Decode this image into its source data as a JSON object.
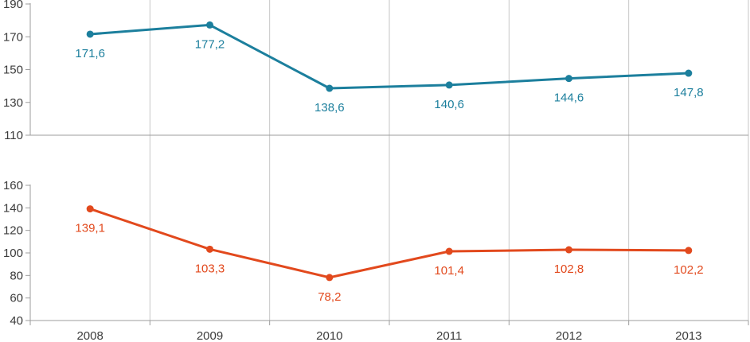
{
  "chart_data": [
    {
      "type": "line",
      "name": "upper-series",
      "title": "",
      "categories": [
        "2008",
        "2009",
        "2010",
        "2011",
        "2012",
        "2013"
      ],
      "values": [
        171.6,
        177.2,
        138.6,
        140.6,
        144.6,
        147.8
      ],
      "point_labels": [
        "171,6",
        "177,2",
        "138,6",
        "140,6",
        "144,6",
        "147,8"
      ],
      "color": "#1c7f9d",
      "xlabel": "",
      "ylabel": "",
      "ylim": [
        110,
        190
      ],
      "yticks": [
        190,
        170,
        150,
        130,
        110
      ],
      "ytick_labels": [
        "190",
        "170",
        "150",
        "130",
        "110"
      ],
      "grid": "vertical-on",
      "legend": "none"
    },
    {
      "type": "line",
      "name": "lower-series",
      "title": "",
      "categories": [
        "2008",
        "2009",
        "2010",
        "2011",
        "2012",
        "2013"
      ],
      "values": [
        139.1,
        103.3,
        78.2,
        101.4,
        102.8,
        102.2
      ],
      "point_labels": [
        "139,1",
        "103,3",
        "78,2",
        "101,4",
        "102,8",
        "102,2"
      ],
      "color": "#e2491d",
      "xlabel": "",
      "ylabel": "",
      "ylim": [
        40,
        160
      ],
      "yticks": [
        160,
        140,
        120,
        100,
        80,
        60,
        40
      ],
      "ytick_labels": [
        "160",
        "140",
        "120",
        "100",
        "80",
        "60",
        "40"
      ],
      "grid": "vertical-on",
      "legend": "none"
    }
  ],
  "colors": {
    "grid_line": "#c6c6c6",
    "axis_line": "#9d9d9d",
    "tick_text": "#3b3b3b",
    "background": "#ffffff"
  }
}
